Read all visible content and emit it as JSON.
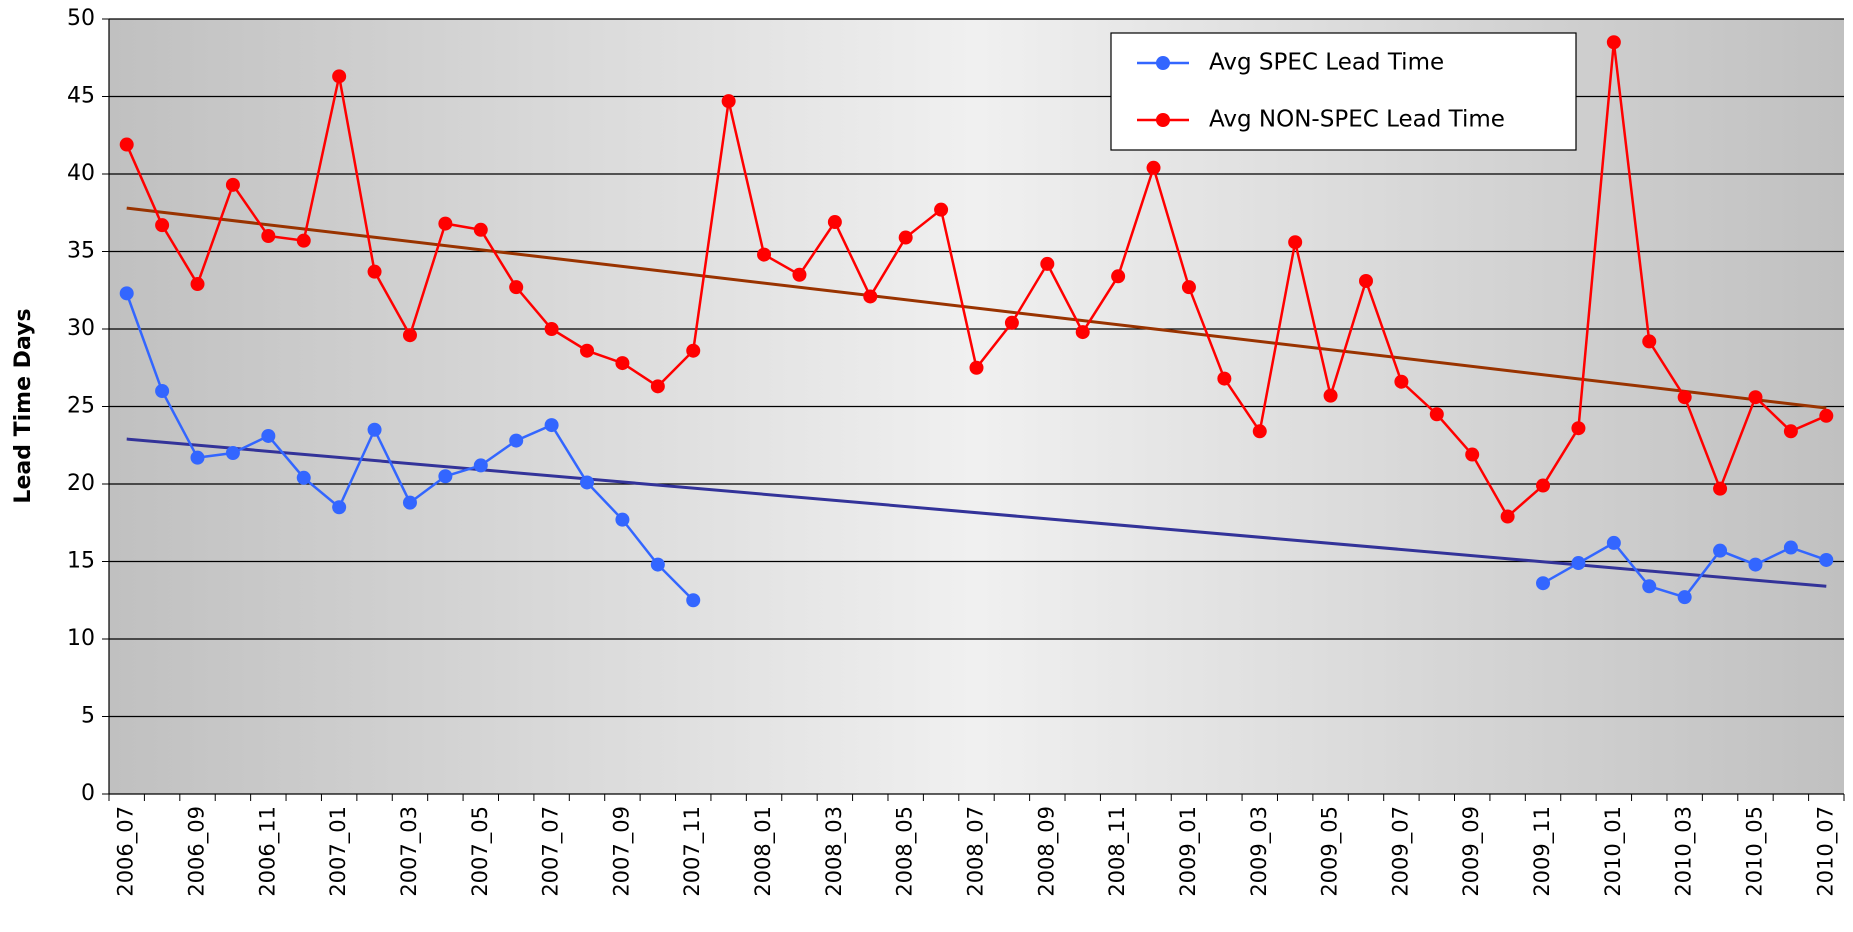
{
  "chart_data": {
    "type": "line",
    "y_label": "Lead Time Days",
    "categories": [
      "2006_07",
      null,
      "2006_09",
      null,
      "2006_11",
      null,
      "2007_01",
      null,
      "2007_03",
      null,
      "2007_05",
      null,
      "2007_07",
      null,
      "2007_09",
      null,
      "2007_11",
      null,
      "2008_01",
      null,
      "2008_03",
      null,
      "2008_05",
      null,
      "2008_07",
      null,
      "2008_09",
      null,
      "2008_11",
      null,
      "2009_01",
      null,
      "2009_03",
      null,
      "2009_05",
      null,
      "2009_07",
      null,
      "2009_09",
      null,
      "2009_11",
      null,
      "2010_01",
      null,
      "2010_03",
      null,
      "2010_05",
      null,
      "2010_07"
    ],
    "series": [
      {
        "name": "Avg SPEC Lead Time",
        "color": "#3366ff",
        "values": [
          32.3,
          26.0,
          21.7,
          22.0,
          23.1,
          20.4,
          18.5,
          23.5,
          18.8,
          20.5,
          21.2,
          22.8,
          23.8,
          20.1,
          17.7,
          14.8,
          12.5,
          null,
          null,
          null,
          null,
          null,
          null,
          null,
          null,
          null,
          null,
          null,
          null,
          null,
          null,
          null,
          null,
          null,
          null,
          null,
          null,
          null,
          null,
          null,
          13.6,
          14.9,
          16.2,
          13.4,
          12.7,
          15.7,
          14.8,
          15.9,
          15.1
        ]
      },
      {
        "name": "Avg NON-SPEC Lead Time",
        "color": "#ff0000",
        "values": [
          41.9,
          36.7,
          32.9,
          39.3,
          36.0,
          35.7,
          46.3,
          33.7,
          29.6,
          36.8,
          36.4,
          32.7,
          30.0,
          28.6,
          27.8,
          26.3,
          28.6,
          44.7,
          34.8,
          33.5,
          36.9,
          32.1,
          35.9,
          37.7,
          27.5,
          30.4,
          34.2,
          29.8,
          33.4,
          40.4,
          32.7,
          26.8,
          23.4,
          35.6,
          25.7,
          33.1,
          26.6,
          24.5,
          21.9,
          17.9,
          19.9,
          23.6,
          48.5,
          29.2,
          25.6,
          19.7,
          25.6,
          23.4,
          24.4
        ]
      }
    ],
    "trendlines": [
      {
        "color": "#333399",
        "values": [
          22.9,
          13.4
        ]
      },
      {
        "color": "#993300",
        "values": [
          37.8,
          24.9
        ]
      }
    ],
    "ylim": [
      0,
      50
    ],
    "yticks": [
      0,
      5,
      10,
      15,
      20,
      25,
      30,
      35,
      40,
      45,
      50
    ],
    "grid": true,
    "legend": "top-right"
  }
}
